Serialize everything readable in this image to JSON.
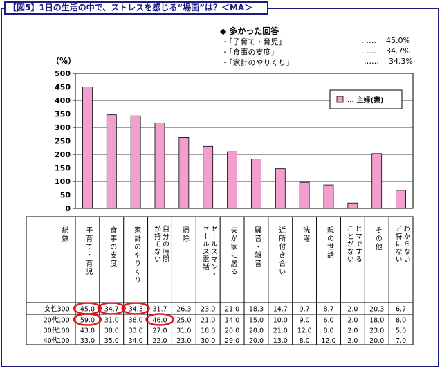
{
  "title": "【図5】1日の生活の中で、ストレスを感じる“場面”は？＜MA＞",
  "summary": {
    "heading": "◆ 多かった回答",
    "items": [
      {
        "label": "・「子育て・育児」",
        "dots": "……",
        "value": "45.0%"
      },
      {
        "label": "・「食事の支度」",
        "dots": "……",
        "value": "34.7%"
      },
      {
        "label": "・「家計のやりくり」",
        "dots": "……",
        "value": "34.3%"
      }
    ]
  },
  "chart_data": {
    "type": "bar",
    "ylabel": "（%）",
    "ylim": [
      0,
      500
    ],
    "yticks": [
      "0",
      "50",
      "100",
      "150",
      "200",
      "250",
      "300",
      "350",
      "400",
      "450",
      "500"
    ],
    "grid": true,
    "legend_position": "top-right",
    "categories": [
      "総数",
      "子育て・育児",
      "食事の支度",
      "家計のやりくり",
      "自分の時間が持てない",
      "掃除",
      "セールスマン・セールス電話",
      "夫が家に居る",
      "騒音・雑音",
      "近所付き合い",
      "洗濯",
      "親の世話",
      "ヒマですることがない",
      "その他",
      "わからない／特にない"
    ],
    "series": [
      {
        "name": "… 主婦(妻)",
        "color": "#f29fd0",
        "values": [
          null,
          450,
          347,
          343,
          317,
          263,
          230,
          210,
          183,
          147,
          97,
          87,
          20,
          203,
          67
        ]
      }
    ]
  },
  "table": {
    "rows": [
      {
        "label": "女性",
        "values": [
          "300",
          "45.0",
          "34.7",
          "34.3",
          "31.7",
          "26.3",
          "23.0",
          "21.0",
          "18.3",
          "14.7",
          "9.7",
          "8.7",
          "2.0",
          "20.3",
          "6.7"
        ]
      },
      {
        "label": "20代",
        "values": [
          "100",
          "59.0",
          "31.0",
          "36.0",
          "46.0",
          "25.0",
          "21.0",
          "14.0",
          "15.0",
          "10.0",
          "9.0",
          "6.0",
          "2.0",
          "18.0",
          "8.0"
        ]
      },
      {
        "label": "30代",
        "values": [
          "100",
          "43.0",
          "38.0",
          "33.0",
          "27.0",
          "31.0",
          "18.0",
          "20.0",
          "20.0",
          "21.0",
          "12.0",
          "8.0",
          "2.0",
          "23.0",
          "5.0"
        ]
      },
      {
        "label": "40代",
        "values": [
          "100",
          "33.0",
          "35.0",
          "34.0",
          "22.0",
          "23.0",
          "30.0",
          "29.0",
          "20.0",
          "13.0",
          "8.0",
          "12.0",
          "2.0",
          "20.0",
          "7.0"
        ]
      }
    ],
    "highlights": [
      [
        0,
        1
      ],
      [
        0,
        2
      ],
      [
        0,
        3
      ],
      [
        1,
        1
      ],
      [
        1,
        4
      ]
    ],
    "highlight_color": "#e0141e"
  }
}
